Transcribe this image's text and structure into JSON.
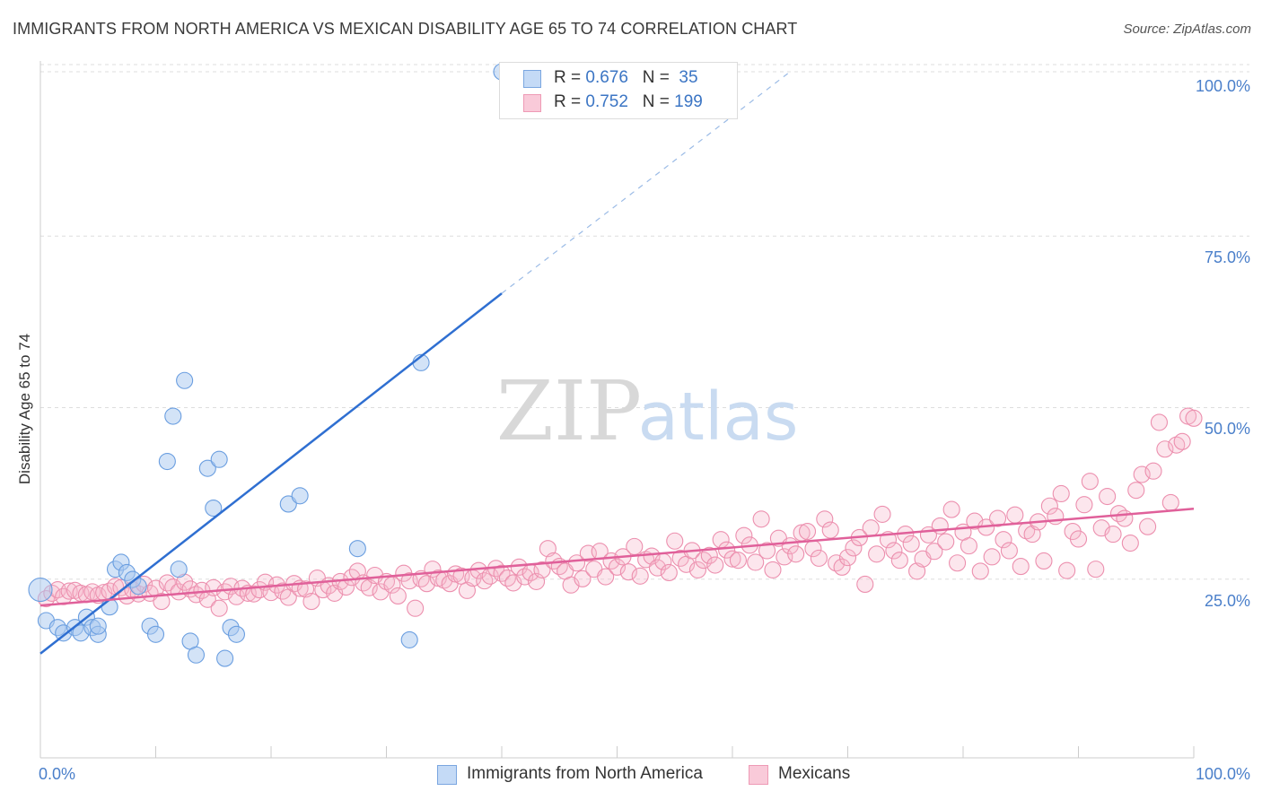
{
  "title": "IMMIGRANTS FROM NORTH AMERICA VS MEXICAN DISABILITY AGE 65 TO 74 CORRELATION CHART",
  "source": "Source: ZipAtlas.com",
  "watermark": {
    "zip": "ZIP",
    "atlas": "atlas"
  },
  "legend": {
    "series1": {
      "r_label": "R = ",
      "r_value": "0.676",
      "n_label": "N = ",
      "n_value": "35",
      "color": "#a8c8f0"
    },
    "series2": {
      "r_label": "R = ",
      "r_value": "0.752",
      "n_label": "N = ",
      "n_value": "199",
      "color": "#f5b8cc"
    }
  },
  "bottom_legend": {
    "series1": "Immigrants from North America",
    "series2": "Mexicans"
  },
  "chart_data": {
    "type": "scatter",
    "title": "IMMIGRANTS FROM NORTH AMERICA VS MEXICAN DISABILITY AGE 65 TO 74 CORRELATION CHART",
    "xlabel": "",
    "ylabel": "Disability Age 65 to 74",
    "xlim": [
      0,
      100
    ],
    "ylim": [
      0,
      100
    ],
    "x_tick_labels": [
      "0.0%",
      "100.0%"
    ],
    "y_tick_labels": [
      "25.0%",
      "50.0%",
      "75.0%",
      "100.0%"
    ],
    "y_ticks": [
      25,
      50,
      75,
      100
    ],
    "grid": true,
    "series": [
      {
        "name": "Immigrants from North America",
        "color": "#a8c8f0",
        "stroke": "#6a9ee0",
        "line_color": "#2f6fd1",
        "r": 0.676,
        "n": 35,
        "trend": {
          "x0": 0,
          "y0": 15.2,
          "x1": 40,
          "y1": 67.7,
          "dash_to_x": 65,
          "dash_to_y": 100
        },
        "points": [
          [
            0,
            24.5
          ],
          [
            0.5,
            20
          ],
          [
            1.5,
            19
          ],
          [
            2,
            18.2
          ],
          [
            3,
            19
          ],
          [
            3.5,
            18.2
          ],
          [
            4,
            20.5
          ],
          [
            4.5,
            19
          ],
          [
            5,
            18
          ],
          [
            5,
            19.2
          ],
          [
            6,
            22
          ],
          [
            6.5,
            27.5
          ],
          [
            7,
            28.5
          ],
          [
            7.5,
            27
          ],
          [
            8,
            26
          ],
          [
            8.5,
            25
          ],
          [
            9.5,
            19.2
          ],
          [
            10,
            18
          ],
          [
            11,
            43.2
          ],
          [
            11.5,
            49.8
          ],
          [
            12,
            27.5
          ],
          [
            12.5,
            55
          ],
          [
            13,
            17
          ],
          [
            13.5,
            15
          ],
          [
            14.5,
            42.2
          ],
          [
            15,
            36.4
          ],
          [
            15.5,
            43.5
          ],
          [
            16,
            14.5
          ],
          [
            16.5,
            19
          ],
          [
            17,
            18
          ],
          [
            21.5,
            37
          ],
          [
            22.5,
            38.2
          ],
          [
            27.5,
            30.5
          ],
          [
            32,
            17.2
          ],
          [
            33,
            57.6
          ],
          [
            40,
            100
          ]
        ]
      },
      {
        "name": "Mexicans",
        "color": "#f5b8cc",
        "stroke": "#ec8fae",
        "line_color": "#e0609a",
        "r": 0.752,
        "n": 199,
        "trend": {
          "x0": 0,
          "y0": 22.2,
          "x1": 100,
          "y1": 36.3
        },
        "points": [
          [
            0.5,
            23.2
          ],
          [
            1,
            24
          ],
          [
            1.5,
            24.5
          ],
          [
            2,
            23.5
          ],
          [
            2.5,
            24.3
          ],
          [
            3,
            24.4
          ],
          [
            3.5,
            24
          ],
          [
            4,
            23.8
          ],
          [
            4.5,
            24.2
          ],
          [
            5,
            23.7
          ],
          [
            5.5,
            24.1
          ],
          [
            6,
            24.3
          ],
          [
            6.5,
            25
          ],
          [
            7,
            24.8
          ],
          [
            7.5,
            23.6
          ],
          [
            8,
            24.5
          ],
          [
            8.5,
            23.9
          ],
          [
            9,
            25.3
          ],
          [
            9.5,
            24
          ],
          [
            10,
            24.7
          ],
          [
            10.5,
            22.8
          ],
          [
            11,
            25.5
          ],
          [
            11.5,
            24.9
          ],
          [
            12,
            24.2
          ],
          [
            12.5,
            25.6
          ],
          [
            13,
            24.6
          ],
          [
            13.5,
            23.8
          ],
          [
            14,
            24.4
          ],
          [
            14.5,
            23.1
          ],
          [
            15,
            24.8
          ],
          [
            15.5,
            21.8
          ],
          [
            16,
            24.2
          ],
          [
            16.5,
            25
          ],
          [
            17,
            23.5
          ],
          [
            17.5,
            24.7
          ],
          [
            18,
            24
          ],
          [
            18.5,
            23.9
          ],
          [
            19,
            24.5
          ],
          [
            19.5,
            25.6
          ],
          [
            20,
            24.1
          ],
          [
            20.5,
            25.2
          ],
          [
            21,
            24.3
          ],
          [
            21.5,
            23.4
          ],
          [
            22,
            25.4
          ],
          [
            22.5,
            24.7
          ],
          [
            23,
            24.6
          ],
          [
            23.5,
            22.8
          ],
          [
            24,
            26.2
          ],
          [
            24.5,
            24.5
          ],
          [
            25,
            25.1
          ],
          [
            25.5,
            24
          ],
          [
            26,
            25.7
          ],
          [
            26.5,
            24.9
          ],
          [
            27,
            26.3
          ],
          [
            27.5,
            27.2
          ],
          [
            28,
            25.5
          ],
          [
            28.5,
            24.8
          ],
          [
            29,
            26.6
          ],
          [
            29.5,
            24.2
          ],
          [
            30,
            25.7
          ],
          [
            30.5,
            25.2
          ],
          [
            31,
            23.6
          ],
          [
            31.5,
            26.9
          ],
          [
            32,
            25.8
          ],
          [
            32.5,
            21.8
          ],
          [
            33,
            26.1
          ],
          [
            33.5,
            25.4
          ],
          [
            34,
            27.5
          ],
          [
            34.5,
            26.2
          ],
          [
            35,
            25.9
          ],
          [
            35.5,
            25.4
          ],
          [
            36,
            26.8
          ],
          [
            36.5,
            26.5
          ],
          [
            37,
            24.4
          ],
          [
            37.5,
            26.2
          ],
          [
            38,
            27.3
          ],
          [
            38.5,
            25.8
          ],
          [
            39,
            26.5
          ],
          [
            39.5,
            27.6
          ],
          [
            40,
            26.9
          ],
          [
            40.5,
            26.2
          ],
          [
            41,
            25.5
          ],
          [
            41.5,
            27.8
          ],
          [
            42,
            26.4
          ],
          [
            42.5,
            27
          ],
          [
            43,
            25.7
          ],
          [
            43.5,
            27.4
          ],
          [
            44,
            30.5
          ],
          [
            44.5,
            28.7
          ],
          [
            45,
            27.9
          ],
          [
            45.5,
            27.2
          ],
          [
            46,
            25.2
          ],
          [
            46.5,
            28.4
          ],
          [
            47,
            26.1
          ],
          [
            47.5,
            29.8
          ],
          [
            48,
            27.5
          ],
          [
            48.5,
            30.1
          ],
          [
            49,
            26.4
          ],
          [
            49.5,
            28.7
          ],
          [
            50,
            27.8
          ],
          [
            50.5,
            29.3
          ],
          [
            51,
            27.1
          ],
          [
            51.5,
            30.8
          ],
          [
            52,
            26.5
          ],
          [
            52.5,
            28.9
          ],
          [
            53,
            29.4
          ],
          [
            53.5,
            27.7
          ],
          [
            54,
            28.6
          ],
          [
            54.5,
            27
          ],
          [
            55,
            31.6
          ],
          [
            55.5,
            29.1
          ],
          [
            56,
            28.2
          ],
          [
            56.5,
            30.2
          ],
          [
            57,
            27.4
          ],
          [
            57.5,
            28.8
          ],
          [
            58,
            29.5
          ],
          [
            58.5,
            28.1
          ],
          [
            59,
            31.8
          ],
          [
            59.5,
            30.3
          ],
          [
            60,
            29
          ],
          [
            60.5,
            28.8
          ],
          [
            61,
            32.4
          ],
          [
            61.5,
            31
          ],
          [
            62,
            28.5
          ],
          [
            62.5,
            34.8
          ],
          [
            63,
            30.2
          ],
          [
            63.5,
            27.4
          ],
          [
            64,
            32
          ],
          [
            64.5,
            29.3
          ],
          [
            65,
            30.9
          ],
          [
            65.5,
            29.7
          ],
          [
            66,
            32.8
          ],
          [
            66.5,
            33
          ],
          [
            67,
            30.5
          ],
          [
            67.5,
            29.1
          ],
          [
            68,
            34.8
          ],
          [
            68.5,
            33.2
          ],
          [
            69,
            28.4
          ],
          [
            69.5,
            27.8
          ],
          [
            70,
            29.2
          ],
          [
            70.5,
            30.6
          ],
          [
            71,
            32.1
          ],
          [
            71.5,
            25.3
          ],
          [
            72,
            33.5
          ],
          [
            72.5,
            29.7
          ],
          [
            73,
            35.5
          ],
          [
            73.5,
            31.8
          ],
          [
            74,
            30.2
          ],
          [
            74.5,
            28.8
          ],
          [
            75,
            32.6
          ],
          [
            75.5,
            31.2
          ],
          [
            76,
            27.2
          ],
          [
            76.5,
            29
          ],
          [
            77,
            32.5
          ],
          [
            77.5,
            30.1
          ],
          [
            78,
            33.8
          ],
          [
            78.5,
            31.5
          ],
          [
            79,
            36.2
          ],
          [
            79.5,
            28.4
          ],
          [
            80,
            32.9
          ],
          [
            80.5,
            30.9
          ],
          [
            81,
            34.5
          ],
          [
            81.5,
            27.2
          ],
          [
            82,
            33.6
          ],
          [
            82.5,
            29.3
          ],
          [
            83,
            34.9
          ],
          [
            83.5,
            31.8
          ],
          [
            84,
            30.2
          ],
          [
            84.5,
            35.4
          ],
          [
            85,
            27.9
          ],
          [
            85.5,
            33.1
          ],
          [
            86,
            32.6
          ],
          [
            86.5,
            34.4
          ],
          [
            87,
            28.7
          ],
          [
            87.5,
            36.7
          ],
          [
            88,
            35.2
          ],
          [
            88.5,
            38.5
          ],
          [
            89,
            27.3
          ],
          [
            89.5,
            33
          ],
          [
            90,
            31.9
          ],
          [
            90.5,
            36.9
          ],
          [
            91,
            40.3
          ],
          [
            91.5,
            27.5
          ],
          [
            92,
            33.5
          ],
          [
            92.5,
            38.1
          ],
          [
            93,
            32.6
          ],
          [
            93.5,
            35.6
          ],
          [
            94,
            34.9
          ],
          [
            94.5,
            31.3
          ],
          [
            95,
            39
          ],
          [
            95.5,
            41.3
          ],
          [
            96,
            33.7
          ],
          [
            96.5,
            41.8
          ],
          [
            97,
            48.9
          ],
          [
            97.5,
            45
          ],
          [
            98,
            37.2
          ],
          [
            98.5,
            45.6
          ],
          [
            99,
            46.1
          ],
          [
            99.5,
            49.8
          ],
          [
            100,
            49.5
          ]
        ]
      }
    ]
  }
}
